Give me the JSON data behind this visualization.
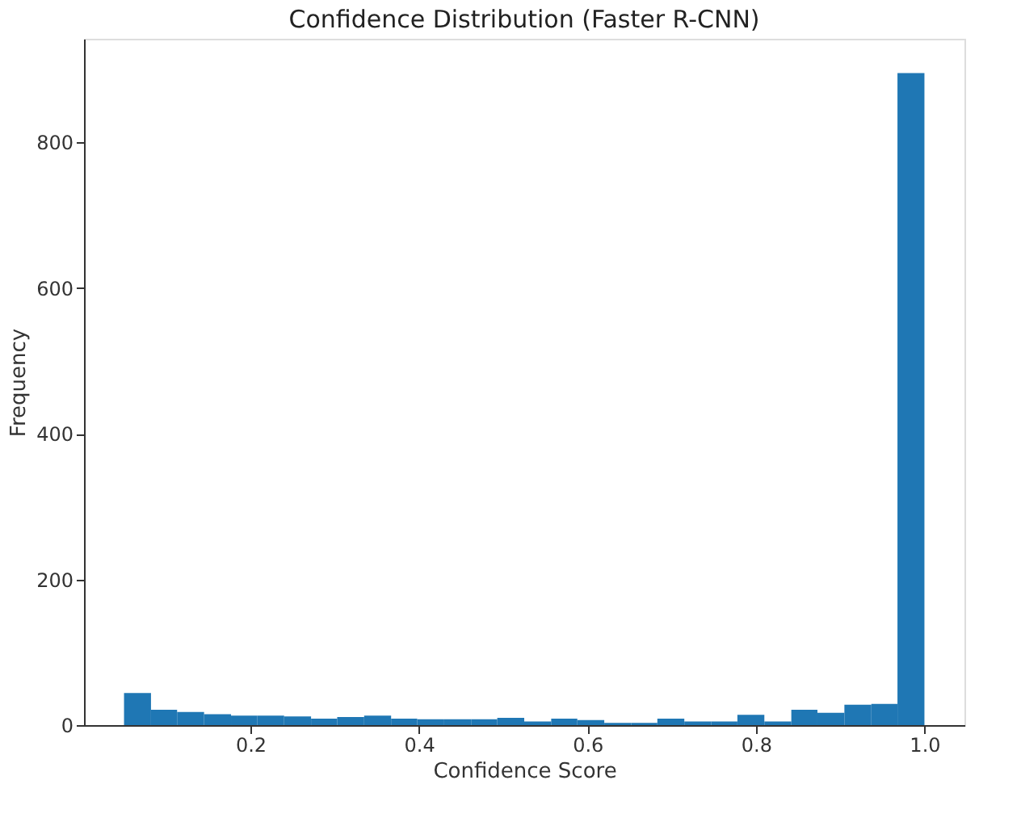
{
  "chart_data": {
    "type": "histogram",
    "title": "Confidence Distribution (Faster R-CNN)",
    "xlabel": "Confidence Score",
    "ylabel": "Frequency",
    "bins": [
      0.05,
      0.082,
      0.113,
      0.145,
      0.177,
      0.208,
      0.24,
      0.272,
      0.303,
      0.335,
      0.367,
      0.398,
      0.43,
      0.462,
      0.493,
      0.525,
      0.557,
      0.588,
      0.62,
      0.652,
      0.683,
      0.715,
      0.747,
      0.778,
      0.81,
      0.842,
      0.873,
      0.905,
      0.937,
      0.968,
      1.0
    ],
    "values": [
      44,
      21,
      18,
      15,
      13,
      13,
      12,
      9,
      11,
      13,
      9,
      8,
      8,
      8,
      10,
      5,
      9,
      7,
      3,
      3,
      9,
      5,
      5,
      14,
      5,
      21,
      17,
      28,
      29,
      895
    ],
    "color": "#1f77b4",
    "xlim": [
      0.0025,
      1.0475
    ],
    "ylim": [
      0,
      942
    ],
    "xticks": [
      0.2,
      0.4,
      0.6,
      0.8,
      {
        "value": 1.0,
        "label": "1.0"
      }
    ],
    "yticks": [
      0,
      200,
      400,
      600,
      800
    ],
    "grid": false
  }
}
